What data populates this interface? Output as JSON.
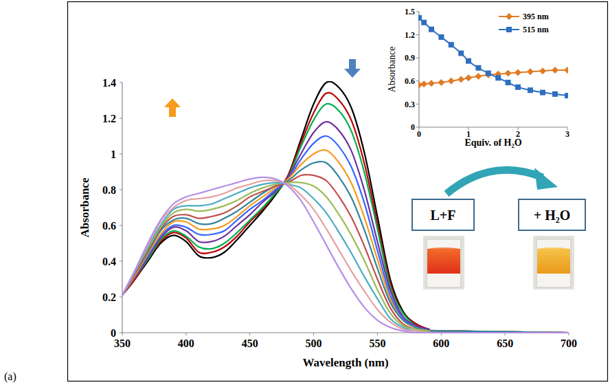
{
  "chart_data": [
    {
      "type": "line",
      "panel_label": "(a)",
      "x_label": "Wavelength (nm)",
      "y_label": "Absorbance",
      "annotations": [
        "L+F",
        "+ H₂O"
      ],
      "xlim": [
        350,
        700
      ],
      "xticks": [
        350,
        400,
        450,
        500,
        550,
        600,
        650,
        700
      ],
      "ylim": [
        0,
        1.4
      ],
      "yticks": [
        0,
        0.2,
        0.4,
        0.6,
        0.8,
        1,
        1.2,
        1.4
      ],
      "grid": false,
      "x": [
        350,
        360,
        370,
        380,
        390,
        400,
        410,
        420,
        430,
        440,
        450,
        460,
        470,
        480,
        490,
        500,
        510,
        520,
        530,
        540,
        550,
        560,
        570,
        580,
        590,
        600,
        700
      ],
      "series": [
        {
          "color": "#000000",
          "values": [
            0.21,
            0.3,
            0.4,
            0.5,
            0.545,
            0.51,
            0.43,
            0.42,
            0.45,
            0.52,
            0.6,
            0.68,
            0.77,
            0.88,
            1.08,
            1.28,
            1.4,
            1.37,
            1.25,
            1.0,
            0.65,
            0.3,
            0.12,
            0.05,
            0.02,
            0.01,
            0
          ]
        },
        {
          "color": "#c00000",
          "values": [
            0.21,
            0.3,
            0.41,
            0.51,
            0.56,
            0.53,
            0.45,
            0.45,
            0.48,
            0.54,
            0.62,
            0.69,
            0.78,
            0.88,
            1.06,
            1.23,
            1.34,
            1.3,
            1.18,
            0.94,
            0.61,
            0.28,
            0.11,
            0.05,
            0.02,
            0.01,
            0
          ]
        },
        {
          "color": "#00b050",
          "values": [
            0.21,
            0.31,
            0.41,
            0.52,
            0.57,
            0.54,
            0.48,
            0.47,
            0.5,
            0.56,
            0.63,
            0.7,
            0.78,
            0.87,
            1.04,
            1.19,
            1.28,
            1.24,
            1.12,
            0.89,
            0.58,
            0.26,
            0.11,
            0.04,
            0.02,
            0.01,
            0
          ]
        },
        {
          "color": "#7030a0",
          "values": [
            0.21,
            0.31,
            0.42,
            0.53,
            0.59,
            0.57,
            0.51,
            0.51,
            0.54,
            0.6,
            0.66,
            0.73,
            0.79,
            0.87,
            1.0,
            1.12,
            1.18,
            1.13,
            1.01,
            0.79,
            0.51,
            0.24,
            0.09,
            0.04,
            0.02,
            0.01,
            0
          ]
        },
        {
          "color": "#3366ff",
          "values": [
            0.21,
            0.32,
            0.43,
            0.54,
            0.6,
            0.59,
            0.55,
            0.55,
            0.57,
            0.63,
            0.69,
            0.74,
            0.8,
            0.86,
            0.97,
            1.06,
            1.1,
            1.04,
            0.92,
            0.72,
            0.46,
            0.21,
            0.08,
            0.03,
            0.01,
            0.01,
            0
          ]
        },
        {
          "color": "#f79a1e",
          "values": [
            0.21,
            0.32,
            0.44,
            0.55,
            0.62,
            0.62,
            0.58,
            0.58,
            0.6,
            0.65,
            0.71,
            0.76,
            0.81,
            0.86,
            0.94,
            1.0,
            1.02,
            0.95,
            0.83,
            0.64,
            0.41,
            0.19,
            0.07,
            0.03,
            0.01,
            0.01,
            0
          ]
        },
        {
          "color": "#31859c",
          "values": [
            0.21,
            0.33,
            0.45,
            0.57,
            0.63,
            0.64,
            0.61,
            0.61,
            0.64,
            0.68,
            0.73,
            0.78,
            0.82,
            0.85,
            0.91,
            0.95,
            0.95,
            0.87,
            0.75,
            0.57,
            0.36,
            0.17,
            0.07,
            0.03,
            0.01,
            0.01,
            0
          ]
        },
        {
          "color": "#c0504d",
          "values": [
            0.21,
            0.33,
            0.46,
            0.58,
            0.65,
            0.66,
            0.64,
            0.65,
            0.67,
            0.71,
            0.76,
            0.79,
            0.82,
            0.84,
            0.88,
            0.88,
            0.85,
            0.76,
            0.64,
            0.48,
            0.3,
            0.14,
            0.05,
            0.02,
            0.01,
            0,
            0
          ]
        },
        {
          "color": "#9bbb59",
          "values": [
            0.21,
            0.34,
            0.47,
            0.59,
            0.67,
            0.69,
            0.68,
            0.69,
            0.71,
            0.74,
            0.78,
            0.81,
            0.83,
            0.84,
            0.84,
            0.82,
            0.76,
            0.66,
            0.54,
            0.4,
            0.24,
            0.11,
            0.04,
            0.02,
            0.01,
            0,
            0
          ]
        },
        {
          "color": "#4bacc6",
          "values": [
            0.21,
            0.34,
            0.48,
            0.6,
            0.69,
            0.71,
            0.71,
            0.72,
            0.75,
            0.78,
            0.81,
            0.83,
            0.84,
            0.83,
            0.81,
            0.75,
            0.67,
            0.56,
            0.44,
            0.31,
            0.19,
            0.08,
            0.03,
            0.01,
            0,
            0,
            0
          ]
        },
        {
          "color": "#e6a0a0",
          "values": [
            0.21,
            0.35,
            0.49,
            0.62,
            0.7,
            0.74,
            0.75,
            0.76,
            0.78,
            0.81,
            0.83,
            0.85,
            0.85,
            0.83,
            0.77,
            0.69,
            0.58,
            0.46,
            0.34,
            0.23,
            0.13,
            0.06,
            0.02,
            0.01,
            0,
            0,
            0
          ]
        },
        {
          "color": "#b48ee8",
          "values": [
            0.21,
            0.35,
            0.5,
            0.63,
            0.72,
            0.76,
            0.78,
            0.8,
            0.82,
            0.84,
            0.86,
            0.87,
            0.86,
            0.82,
            0.74,
            0.62,
            0.49,
            0.36,
            0.24,
            0.14,
            0.07,
            0.03,
            0.01,
            0,
            0,
            0,
            0
          ]
        }
      ]
    },
    {
      "type": "line",
      "x_label": "Equiv. of H₂O",
      "y_label": "Absorbance",
      "xlim": [
        0,
        3
      ],
      "xticks": [
        0,
        1,
        2,
        3
      ],
      "ylim": [
        0,
        1.5
      ],
      "yticks": [
        0,
        0.3,
        0.6,
        0.9,
        1.2,
        1.5
      ],
      "grid": false,
      "legend": "top-right",
      "x": [
        0,
        0.1,
        0.25,
        0.45,
        0.65,
        0.85,
        1,
        1.2,
        1.4,
        1.6,
        1.8,
        2,
        2.25,
        2.5,
        2.75,
        3
      ],
      "series": [
        {
          "name": "395 nm",
          "color": "#e07b24",
          "marker": "diamond",
          "values": [
            0.55,
            0.56,
            0.57,
            0.58,
            0.6,
            0.62,
            0.64,
            0.66,
            0.68,
            0.69,
            0.7,
            0.71,
            0.72,
            0.73,
            0.74,
            0.74
          ]
        },
        {
          "name": "515 nm",
          "color": "#2e6fc0",
          "marker": "square",
          "values": [
            1.42,
            1.36,
            1.27,
            1.17,
            1.07,
            0.96,
            0.86,
            0.77,
            0.7,
            0.64,
            0.58,
            0.52,
            0.48,
            0.45,
            0.43,
            0.41
          ]
        }
      ]
    }
  ]
}
